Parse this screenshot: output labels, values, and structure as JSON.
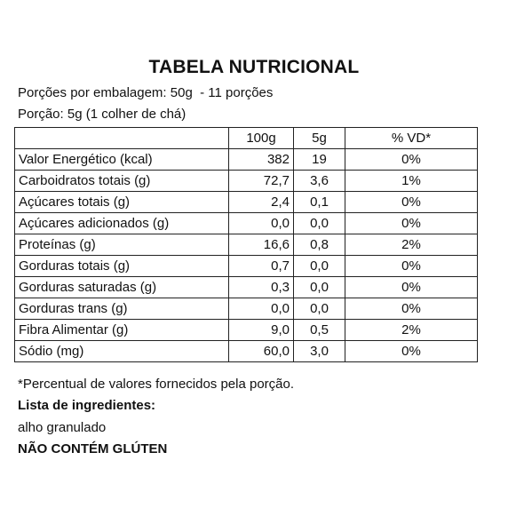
{
  "title": "TABELA NUTRICIONAL",
  "portions_per_package": "Porções por embalagem: 50g  - 11 porções",
  "portion": "Porção: 5g (1 colher de chá)",
  "table": {
    "headers": [
      "",
      "100g",
      "5g",
      "% VD*"
    ],
    "rows": [
      [
        "Valor Energético (kcal)",
        "382",
        "19",
        "0%"
      ],
      [
        "Carboidratos totais (g)",
        "72,7",
        "3,6",
        "1%"
      ],
      [
        "Açúcares totais (g)",
        "2,4",
        "0,1",
        "0%"
      ],
      [
        "Açúcares adicionados (g)",
        "0,0",
        "0,0",
        "0%"
      ],
      [
        "Proteínas (g)",
        "16,6",
        "0,8",
        "2%"
      ],
      [
        "Gorduras totais (g)",
        "0,7",
        "0,0",
        "0%"
      ],
      [
        "Gorduras saturadas (g)",
        "0,3",
        "0,0",
        "0%"
      ],
      [
        "Gorduras trans (g)",
        "0,0",
        "0,0",
        "0%"
      ],
      [
        "Fibra Alimentar (g)",
        "9,0",
        "0,5",
        "2%"
      ],
      [
        "Sódio (mg)",
        "60,0",
        "3,0",
        "0%"
      ]
    ]
  },
  "footnote": "*Percentual de valores fornecidos pela porção.",
  "ingredients_heading": "Lista de ingredientes:",
  "ingredients": "alho granulado",
  "gluten_notice": "NÃO CONTÉM GLÚTEN"
}
